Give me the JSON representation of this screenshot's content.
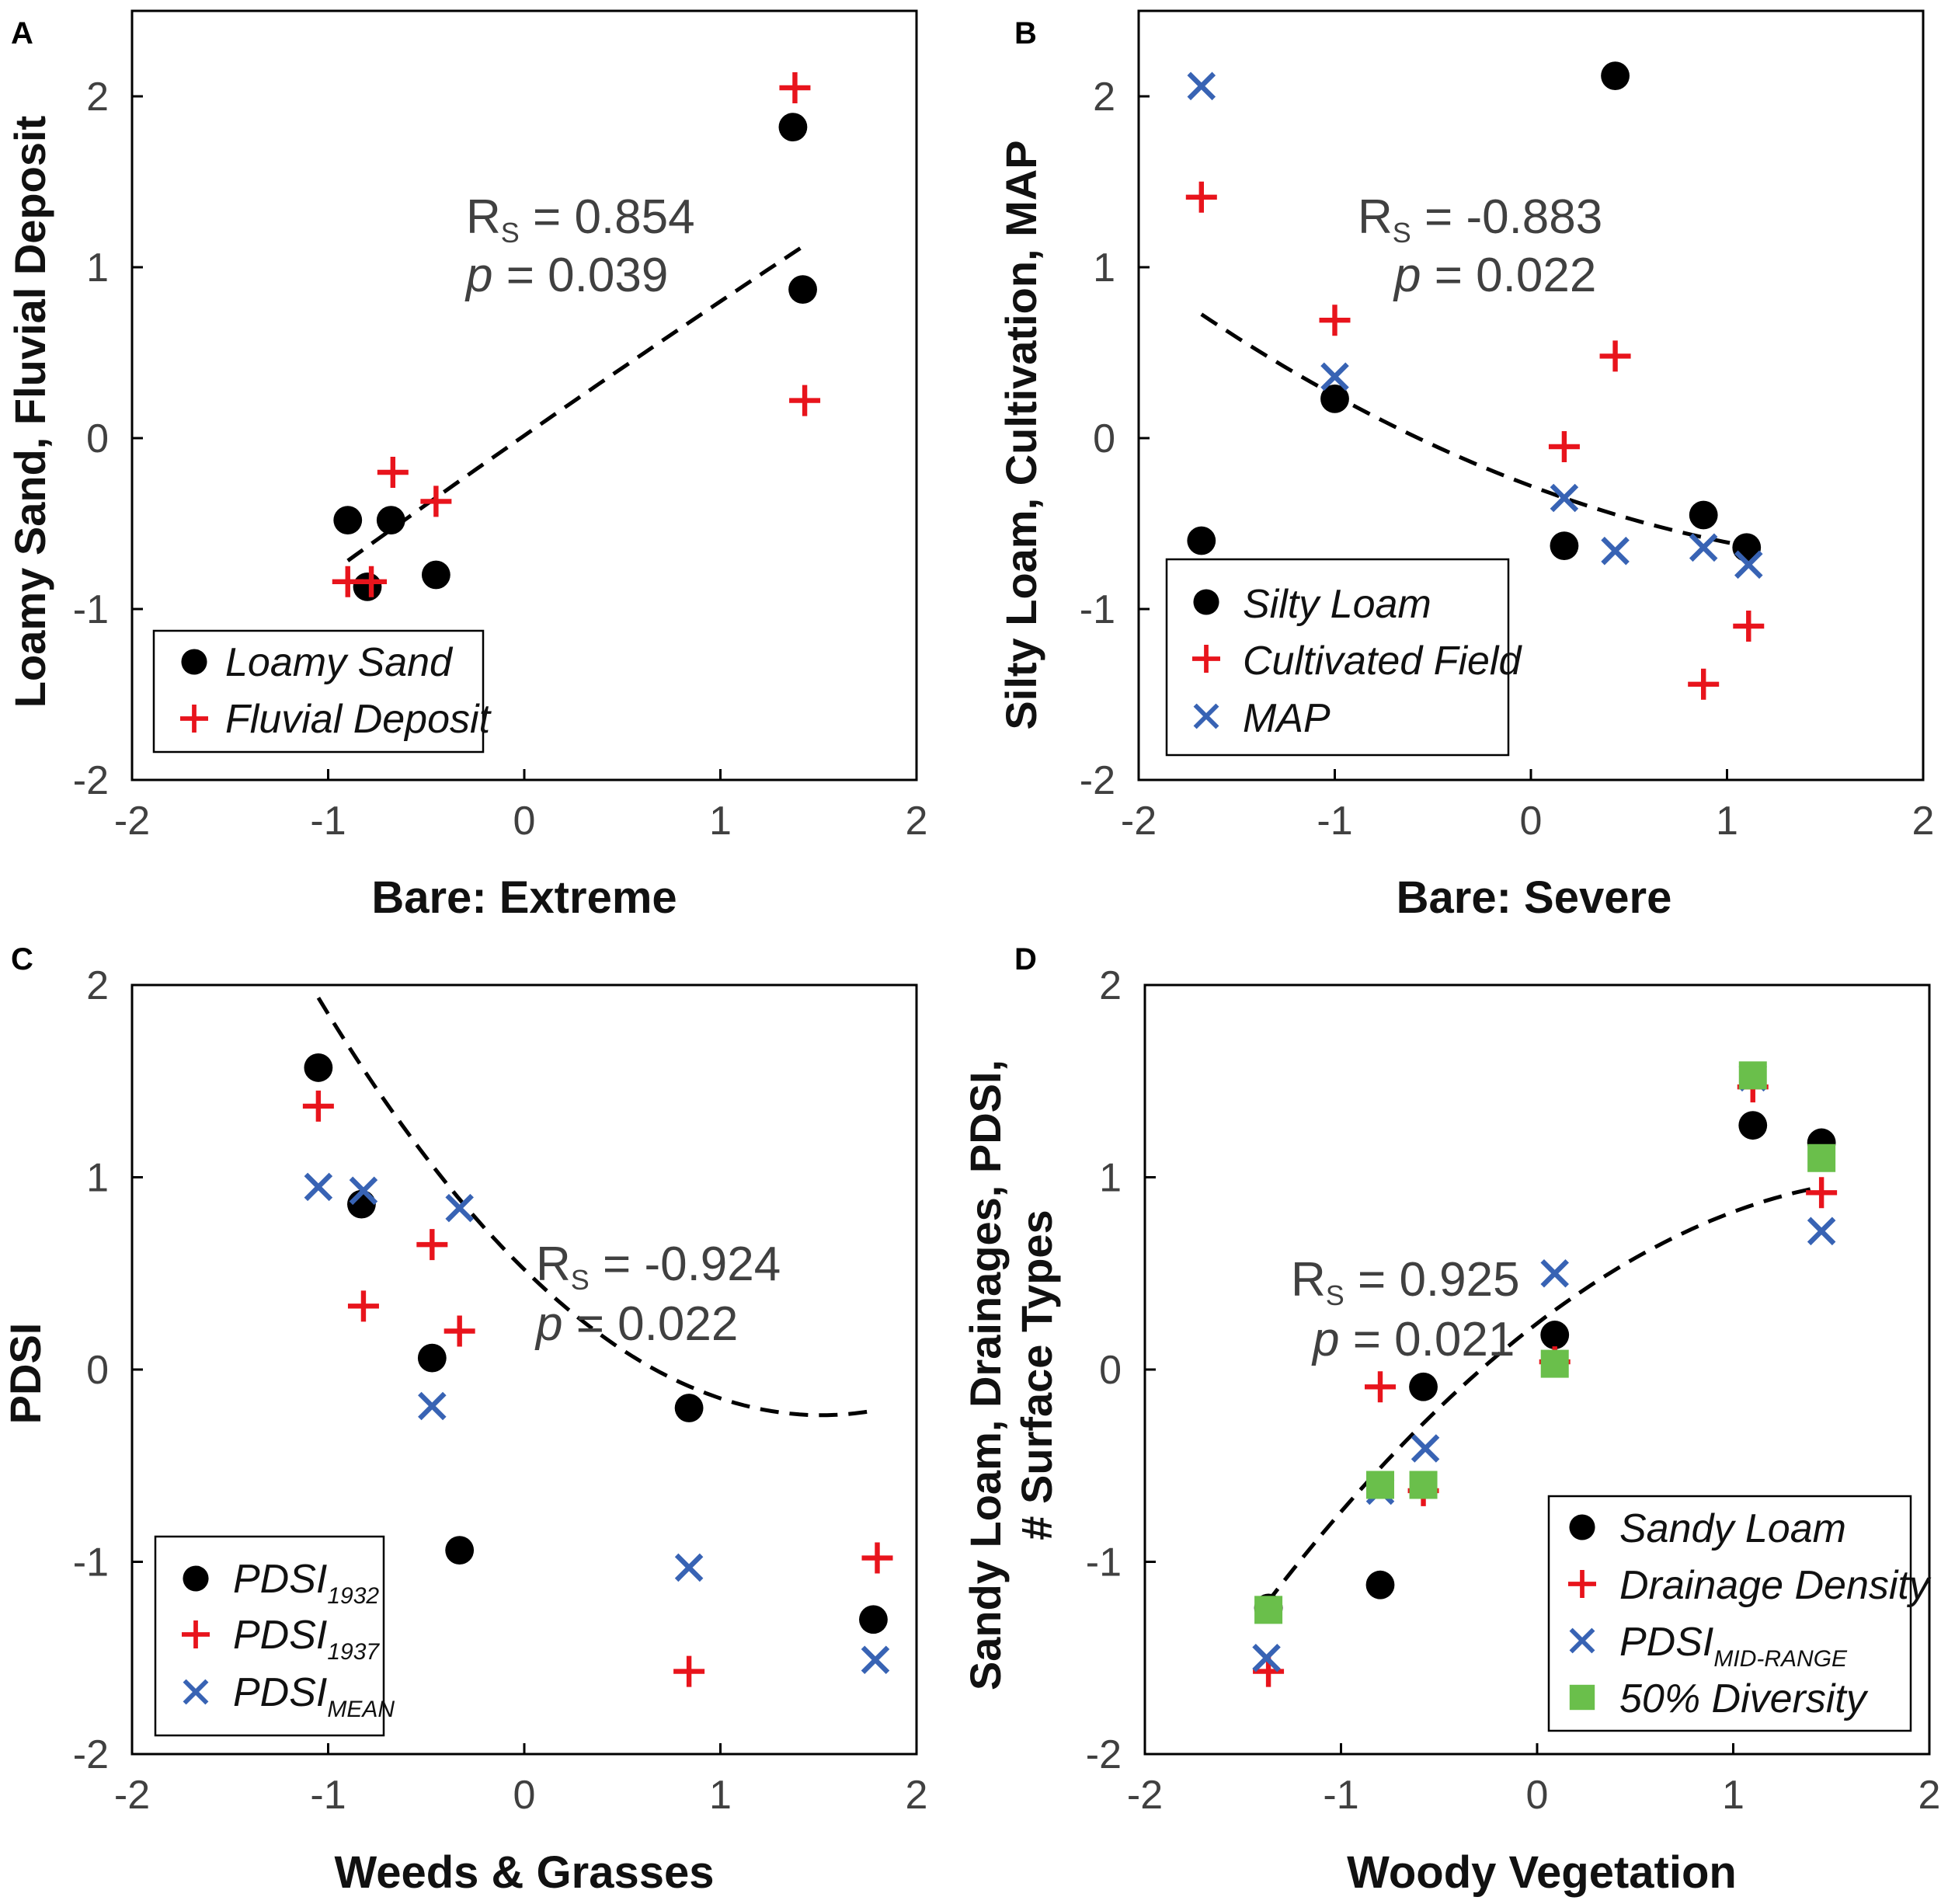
{
  "chart_data": [
    {
      "panel": "A",
      "type": "scatter",
      "xlabel": "Bare: Extreme",
      "ylabel": "Loamy Sand, Fluvial Deposit",
      "xlim": [
        -2,
        2
      ],
      "ylim": [
        -2,
        2.5
      ],
      "xticks": [
        "-2",
        "-1",
        "0",
        "1",
        "2"
      ],
      "yticks": [
        "-2",
        "-1",
        "0",
        "1",
        "2"
      ],
      "stats": {
        "rs_label": "R",
        "rs_sub": "S",
        "rs_value": " = 0.854",
        "p_label": "p",
        "p_value": " = 0.039"
      },
      "trend": {
        "kind": "poly",
        "coef": [
          -0.015,
          0.8,
          0.015
        ],
        "x": [
          -0.9,
          1.43
        ]
      },
      "series": [
        {
          "name": "Loamy Sand",
          "marker": "dot",
          "color": "#000000",
          "points": [
            [
              -0.9,
              -0.48
            ],
            [
              -0.8,
              -0.87
            ],
            [
              -0.68,
              -0.48
            ],
            [
              -0.45,
              -0.8
            ],
            [
              1.37,
              1.82
            ],
            [
              1.42,
              0.87
            ]
          ]
        },
        {
          "name": "Fluvial Deposit",
          "marker": "plus",
          "color": "#e8141c",
          "points": [
            [
              -0.9,
              -0.84
            ],
            [
              -0.78,
              -0.84
            ],
            [
              -0.67,
              -0.2
            ],
            [
              -0.45,
              -0.37
            ],
            [
              1.38,
              2.05
            ],
            [
              1.43,
              0.22
            ]
          ]
        }
      ]
    },
    {
      "panel": "B",
      "type": "scatter",
      "xlabel": "Bare: Severe",
      "ylabel": "Silty Loam, Cultivation, MAP",
      "xlim": [
        -2,
        2
      ],
      "ylim": [
        -2,
        2.5
      ],
      "xticks": [
        "-2",
        "-1",
        "0",
        "1",
        "2"
      ],
      "yticks": [
        "-2",
        "-1",
        "0",
        "1",
        "2"
      ],
      "stats": {
        "rs_label": "R",
        "rs_sub": "S",
        "rs_value": " = -0.883",
        "p_label": "p",
        "p_value": " = 0.022"
      },
      "trend": {
        "kind": "poly",
        "coef": [
          0.1,
          -0.43,
          -0.28
        ],
        "x": [
          -1.68,
          1.12
        ]
      },
      "series": [
        {
          "name": "Silty Loam",
          "marker": "dot",
          "color": "#000000",
          "points": [
            [
              -1.68,
              -0.6
            ],
            [
              -1.0,
              0.23
            ],
            [
              0.17,
              -0.63
            ],
            [
              0.43,
              2.12
            ],
            [
              0.88,
              -0.45
            ],
            [
              1.1,
              -0.64
            ]
          ]
        },
        {
          "name": "Cultivated Field",
          "marker": "plus",
          "color": "#e8141c",
          "points": [
            [
              -1.68,
              1.41
            ],
            [
              -1.0,
              0.69
            ],
            [
              0.17,
              -0.05
            ],
            [
              0.43,
              0.48
            ],
            [
              0.88,
              -1.44
            ],
            [
              1.11,
              -1.1
            ]
          ]
        },
        {
          "name": "MAP",
          "marker": "x",
          "color": "#3863b4",
          "points": [
            [
              -1.68,
              2.06
            ],
            [
              -1.0,
              0.36
            ],
            [
              0.17,
              -0.35
            ],
            [
              0.43,
              -0.66
            ],
            [
              0.88,
              -0.64
            ],
            [
              1.11,
              -0.74
            ]
          ]
        }
      ]
    },
    {
      "panel": "C",
      "type": "scatter",
      "xlabel": "Weeds & Grasses",
      "ylabel": "PDSI",
      "xlim": [
        -2,
        2
      ],
      "ylim": [
        -2,
        2
      ],
      "xticks": [
        "-2",
        "-1",
        "0",
        "1",
        "2"
      ],
      "yticks": [
        "-2",
        "-1",
        "0",
        "1",
        "2"
      ],
      "stats": {
        "rs_label": "R",
        "rs_sub": "S",
        "rs_value": " = -0.924",
        "p_label": "p",
        "p_value": " = 0.022"
      },
      "trend": {
        "kind": "poly",
        "coef": [
          0.33,
          -1.0,
          0.52
        ],
        "x": [
          -1.05,
          1.78
        ]
      },
      "series": [
        {
          "name": "PDSI",
          "sub": "1932",
          "marker": "dot",
          "color": "#000000",
          "points": [
            [
              -1.05,
              1.57
            ],
            [
              -0.83,
              0.86
            ],
            [
              -0.47,
              0.06
            ],
            [
              -0.33,
              -0.94
            ],
            [
              0.84,
              -0.2
            ],
            [
              1.78,
              -1.3
            ]
          ]
        },
        {
          "name": "PDSI",
          "sub": "1937",
          "marker": "plus",
          "color": "#e8141c",
          "points": [
            [
              -1.05,
              1.37
            ],
            [
              -0.82,
              0.33
            ],
            [
              -0.47,
              0.65
            ],
            [
              -0.33,
              0.2
            ],
            [
              0.84,
              -1.57
            ],
            [
              1.8,
              -0.98
            ]
          ]
        },
        {
          "name": "PDSI",
          "sub": "MEAN",
          "marker": "x",
          "color": "#3863b4",
          "points": [
            [
              -1.05,
              0.95
            ],
            [
              -0.82,
              0.93
            ],
            [
              -0.47,
              -0.19
            ],
            [
              -0.33,
              0.84
            ],
            [
              0.84,
              -1.03
            ],
            [
              1.79,
              -1.51
            ]
          ]
        }
      ]
    },
    {
      "panel": "D",
      "type": "scatter",
      "xlabel": "Woody Vegetation",
      "ylabel": "Sandy Loam, Drainages, PDSI,",
      "ylabel2": "# Surface Types",
      "xlim": [
        -2,
        2
      ],
      "ylim": [
        -2,
        2
      ],
      "xticks": [
        "-2",
        "-1",
        "0",
        "1",
        "2"
      ],
      "yticks": [
        "-2",
        "-1",
        "0",
        "1",
        "2"
      ],
      "stats": {
        "rs_label": "R",
        "rs_sub": "S",
        "rs_value": " = 0.925",
        "p_label": "p",
        "p_value": " = 0.021"
      },
      "trend": {
        "kind": "poly",
        "coef": [
          -0.2,
          0.78,
          0.24
        ],
        "x": [
          -1.38,
          1.45
        ]
      },
      "series": [
        {
          "name": "Sandy Loam",
          "marker": "dot",
          "color": "#000000",
          "points": [
            [
              -1.37,
              -1.24
            ],
            [
              -0.8,
              -1.12
            ],
            [
              -0.58,
              -0.09
            ],
            [
              0.09,
              0.18
            ],
            [
              1.1,
              1.27
            ],
            [
              1.45,
              1.18
            ]
          ]
        },
        {
          "name": "Drainage Density",
          "marker": "plus",
          "color": "#e8141c",
          "points": [
            [
              -1.37,
              -1.57
            ],
            [
              -0.8,
              -0.09
            ],
            [
              -0.58,
              -0.63
            ],
            [
              0.09,
              0.04
            ],
            [
              1.1,
              1.47
            ],
            [
              1.45,
              0.92
            ]
          ]
        },
        {
          "name": "PDSI",
          "sub": "MID-RANGE",
          "marker": "x",
          "color": "#3863b4",
          "points": [
            [
              -1.38,
              -1.5
            ],
            [
              -0.8,
              -0.63
            ],
            [
              -0.57,
              -0.41
            ],
            [
              0.09,
              0.5
            ],
            [
              1.1,
              1.52
            ],
            [
              1.45,
              0.72
            ]
          ]
        },
        {
          "name": "50% Diversity",
          "marker": "square",
          "color": "#6abf4b",
          "points": [
            [
              -1.37,
              -1.25
            ],
            [
              -0.8,
              -0.6
            ],
            [
              -0.58,
              -0.6
            ],
            [
              0.09,
              0.03
            ],
            [
              1.1,
              1.53
            ],
            [
              1.45,
              1.1
            ]
          ]
        }
      ]
    }
  ]
}
